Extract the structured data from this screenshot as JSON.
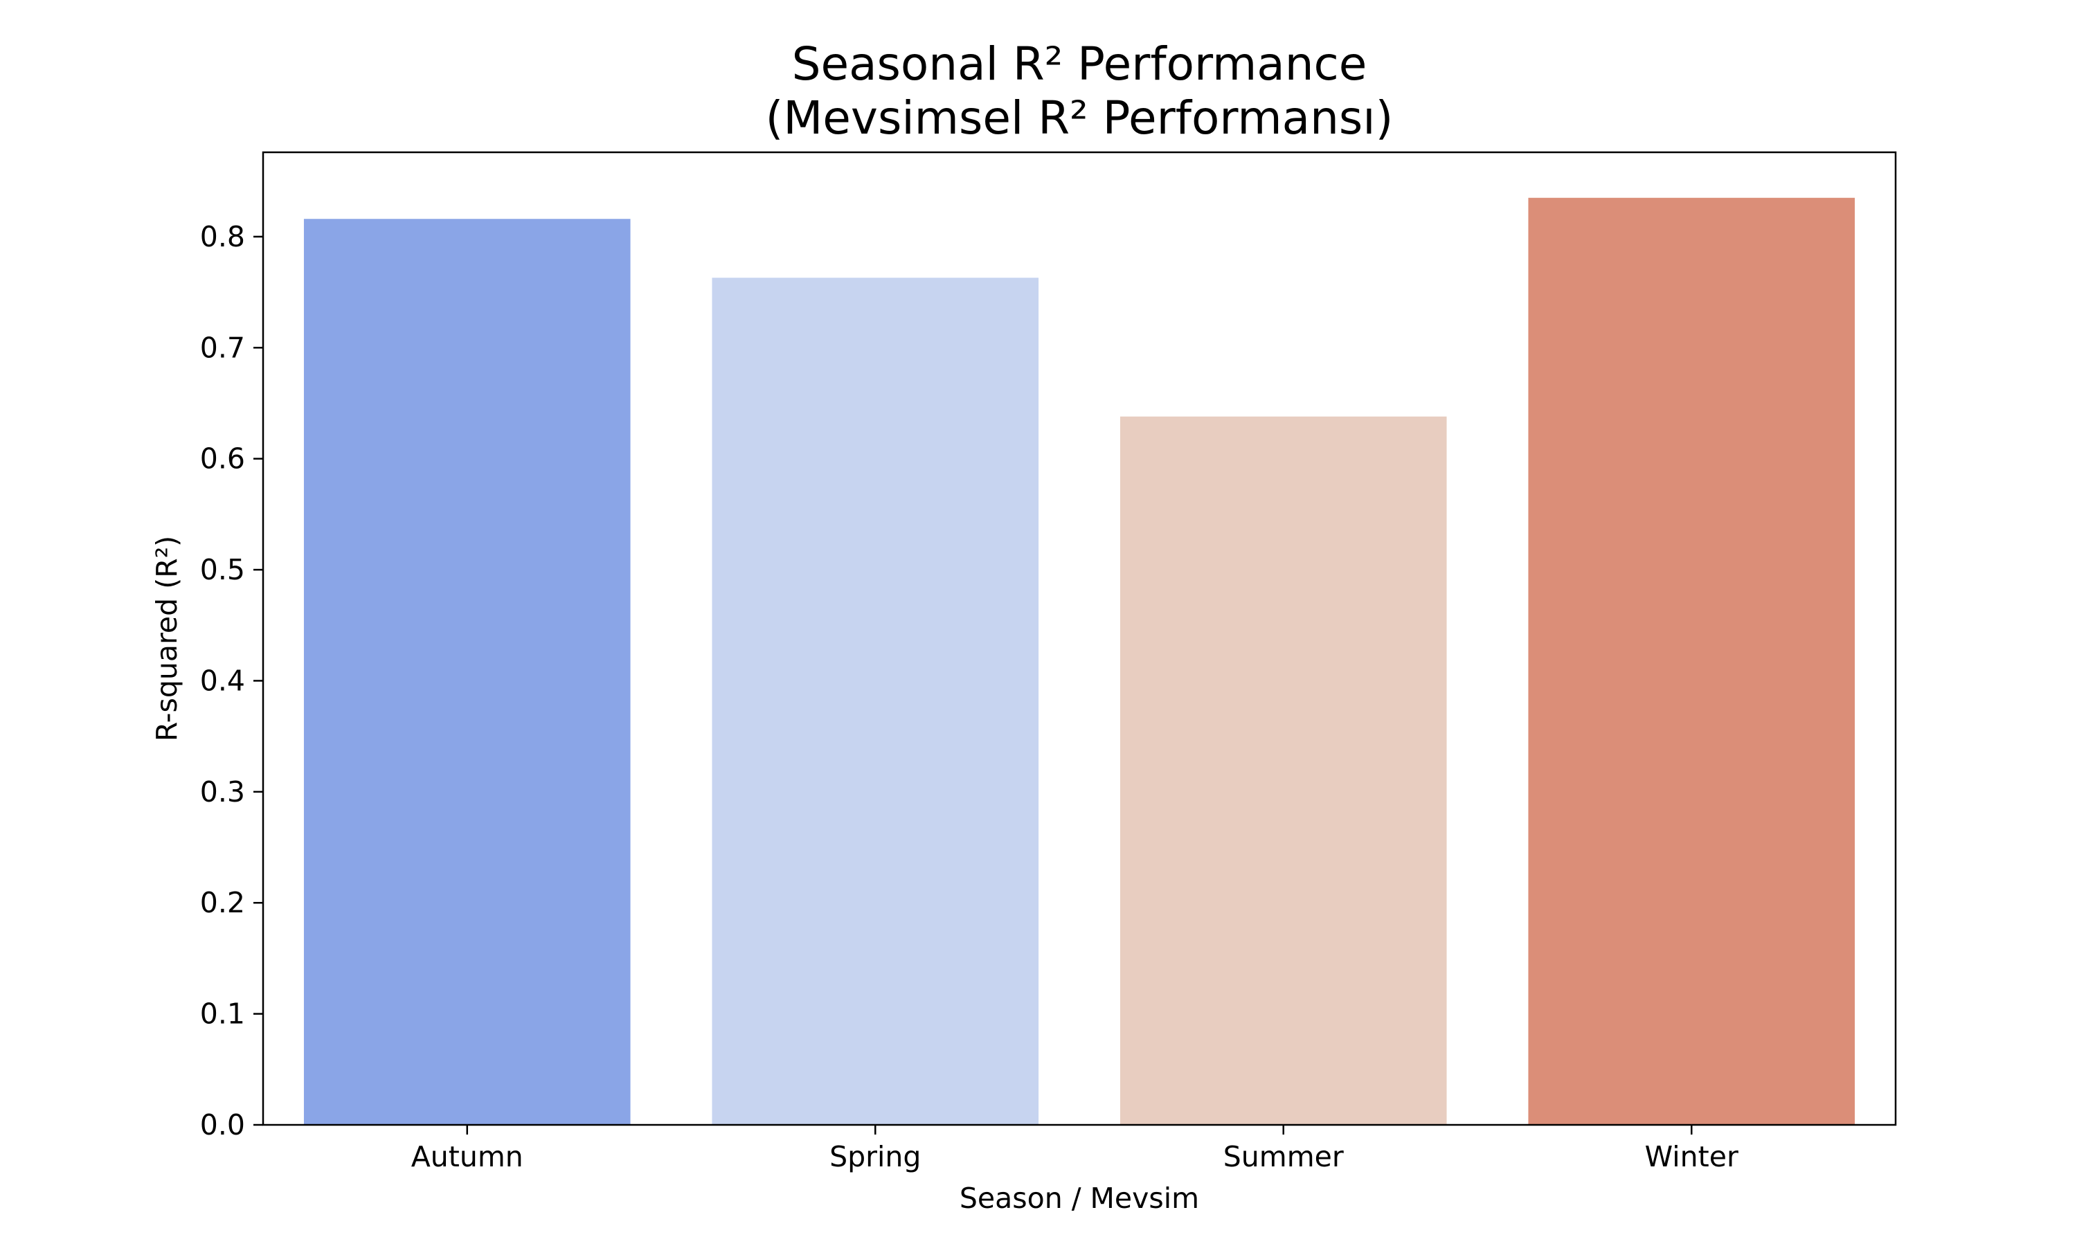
{
  "chart_data": {
    "type": "bar",
    "title": "Seasonal R² Performance\n(Mevsimsel R² Performansı)",
    "xlabel": "Season / Mevsim",
    "ylabel": "R-squared (R²)",
    "categories": [
      "Autumn",
      "Spring",
      "Summer",
      "Winter"
    ],
    "values": [
      0.816,
      0.763,
      0.638,
      0.835
    ],
    "colors": [
      "#8aa5e7",
      "#c7d4f0",
      "#e8cdc0",
      "#db8e78"
    ],
    "ylim": [
      0,
      0.876
    ],
    "yticks": [
      "0.0",
      "0.1",
      "0.2",
      "0.3",
      "0.4",
      "0.5",
      "0.6",
      "0.7",
      "0.8"
    ],
    "grid": false,
    "legend": "none"
  }
}
